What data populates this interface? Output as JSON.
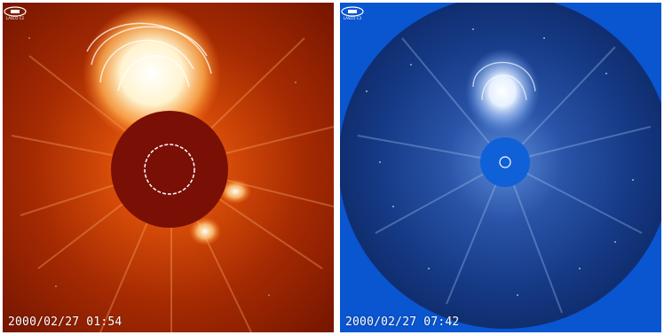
{
  "left_panel": {
    "timestamp": "2000/02/27 01:54",
    "logo_text": "LASCO C2",
    "color_scheme": {
      "background": "#8a1a00",
      "occulter": "#7a0f05",
      "bright": "#ffffff",
      "glow": "#ff7a1f"
    }
  },
  "right_panel": {
    "timestamp": "2000/02/27 07:42",
    "logo_text": "LASCO C3",
    "color_scheme": {
      "background": "#0a55d0",
      "disk": "#123a8a",
      "occulter": "#1060d8",
      "bright": "#ffffff"
    }
  }
}
